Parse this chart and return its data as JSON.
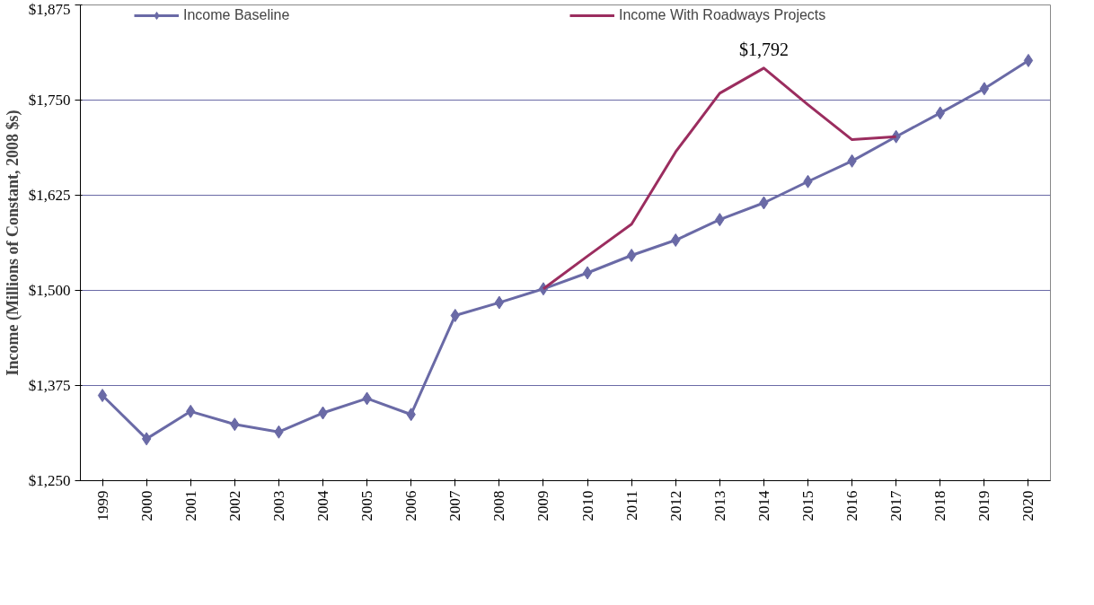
{
  "chart_data": {
    "type": "line",
    "ylabel": "Income (Millions of Constant, 2008 $s)",
    "categories": [
      "1999",
      "2000",
      "2001",
      "2002",
      "2003",
      "2004",
      "2005",
      "2006",
      "2007",
      "2008",
      "2009",
      "2010",
      "2011",
      "2012",
      "2013",
      "2014",
      "2015",
      "2016",
      "2017",
      "2018",
      "2019",
      "2020"
    ],
    "series": [
      {
        "name": "Income Baseline",
        "color": "#6a6aa6",
        "marker": "diamond",
        "values": [
          1362,
          1305,
          1341,
          1324,
          1314,
          1339,
          1358,
          1337,
          1467,
          1484,
          1502,
          1523,
          1546,
          1566,
          1593,
          1615,
          1643,
          1670,
          1702,
          1733,
          1765,
          1802
        ]
      },
      {
        "name": "Income With Roadways Projects",
        "color": "#9b2d5f",
        "marker": "none",
        "values": [
          null,
          null,
          null,
          null,
          null,
          null,
          null,
          null,
          null,
          null,
          1502,
          1545,
          1587,
          1682,
          1759,
          1792,
          1744,
          1698,
          1702,
          null,
          null,
          null
        ]
      }
    ],
    "ylim": [
      1250,
      1875
    ],
    "yticks": [
      {
        "value": 1250,
        "label": "$1,250"
      },
      {
        "value": 1375,
        "label": "$1,375"
      },
      {
        "value": 1500,
        "label": "$1,500"
      },
      {
        "value": 1625,
        "label": "$1,625"
      },
      {
        "value": 1750,
        "label": "$1,750"
      },
      {
        "value": 1875,
        "label": "$1,875"
      }
    ],
    "grid": "y",
    "legend": "top",
    "annotations": [
      {
        "text": "$1,792",
        "x": "2014",
        "y": 1792
      }
    ]
  }
}
